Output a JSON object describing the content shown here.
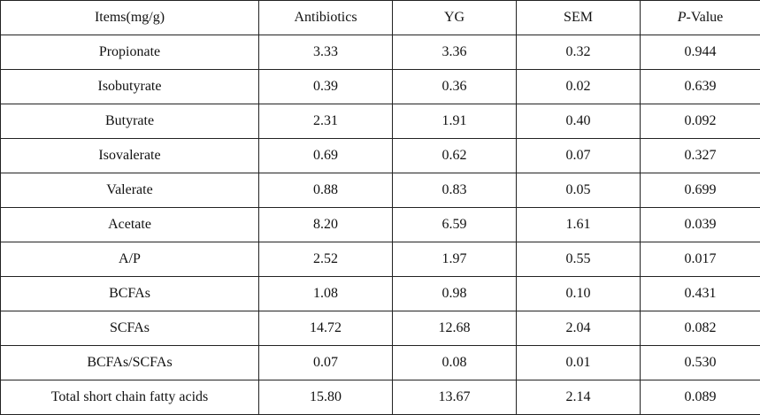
{
  "table": {
    "header": [
      "Items(mg/g)",
      "Antibiotics",
      "YG",
      "SEM",
      "P-Value"
    ],
    "rows": [
      [
        "Propionate",
        "3.33",
        "3.36",
        "0.32",
        "0.944"
      ],
      [
        "Isobutyrate",
        "0.39",
        "0.36",
        "0.02",
        "0.639"
      ],
      [
        "Butyrate",
        "2.31",
        "1.91",
        "0.40",
        "0.092"
      ],
      [
        "Isovalerate",
        "0.69",
        "0.62",
        "0.07",
        "0.327"
      ],
      [
        "Valerate",
        "0.88",
        "0.83",
        "0.05",
        "0.699"
      ],
      [
        "Acetate",
        "8.20",
        "6.59",
        "1.61",
        "0.039"
      ],
      [
        "A/P",
        "2.52",
        "1.97",
        "0.55",
        "0.017"
      ],
      [
        "BCFAs",
        "1.08",
        "0.98",
        "0.10",
        "0.431"
      ],
      [
        "SCFAs",
        "14.72",
        "12.68",
        "2.04",
        "0.082"
      ],
      [
        "BCFAs/SCFAs",
        "0.07",
        "0.08",
        "0.01",
        "0.530"
      ],
      [
        "Total short chain fatty acids",
        "15.80",
        "13.67",
        "2.14",
        "0.089"
      ]
    ]
  }
}
